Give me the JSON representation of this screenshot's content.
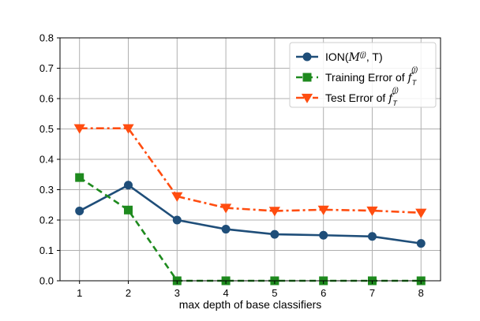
{
  "chart_data": {
    "type": "line",
    "x": [
      1,
      2,
      3,
      4,
      5,
      6,
      7,
      8
    ],
    "xlabel": "max depth of base classifiers",
    "ylabel": "",
    "xlim": [
      0.6,
      8.4
    ],
    "ylim": [
      0.0,
      0.8
    ],
    "xticks": [
      1,
      2,
      3,
      4,
      5,
      6,
      7,
      8
    ],
    "yticks": [
      0.0,
      0.1,
      0.2,
      0.3,
      0.4,
      0.5,
      0.6,
      0.7,
      0.8
    ],
    "grid": true,
    "legend_position": "top-right",
    "series": [
      {
        "name": "ION(M^(j), T)",
        "legend_parts": {
          "pre": "ION(",
          "script": "M",
          "sup": "(j)",
          "post": ", T)"
        },
        "color": "#1f4e79",
        "line_style": "solid",
        "marker": "circle",
        "values": [
          0.23,
          0.315,
          0.2,
          0.17,
          0.153,
          0.15,
          0.146,
          0.123
        ]
      },
      {
        "name": "Training Error of f_T^(j)",
        "legend_parts": {
          "pre": "Training Error of ",
          "f": "f",
          "sub": "T",
          "sup": "(j)"
        },
        "color": "#1e8a1e",
        "line_style": "dashed",
        "marker": "square",
        "values": [
          0.34,
          0.233,
          0.0,
          0.0,
          0.0,
          0.0,
          0.0,
          0.0
        ]
      },
      {
        "name": "Test Error of f_T^(j)",
        "legend_parts": {
          "pre": "Test Error of ",
          "f": "f",
          "sub": "T",
          "sup": "(j)"
        },
        "color": "#ff4d10",
        "line_style": "dashdot",
        "marker": "triangle-down",
        "values": [
          0.502,
          0.502,
          0.278,
          0.24,
          0.23,
          0.234,
          0.231,
          0.224
        ]
      }
    ]
  }
}
